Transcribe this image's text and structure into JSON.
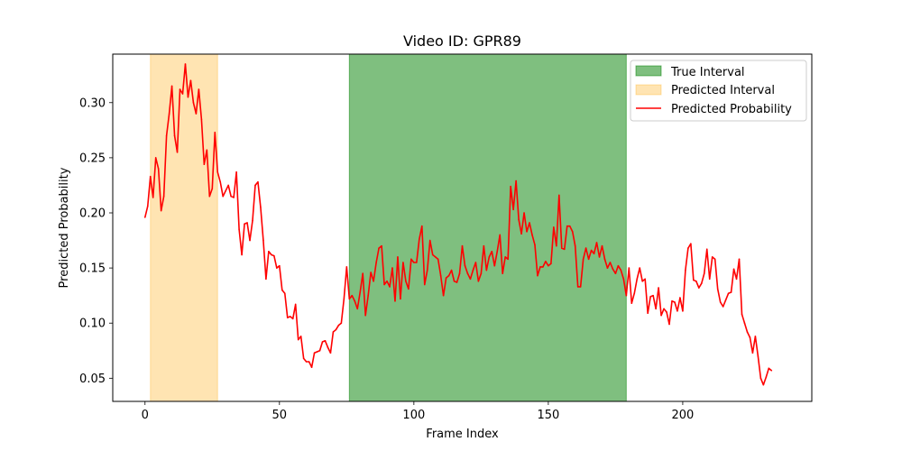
{
  "chart_data": {
    "type": "line",
    "title": "Video ID: GPR89",
    "xlabel": "Frame Index",
    "ylabel": "Predicted Probability",
    "xlim": [
      -12,
      248
    ],
    "ylim": [
      0.029,
      0.344
    ],
    "xticks": [
      0,
      50,
      100,
      150,
      200
    ],
    "yticks": [
      0.05,
      0.1,
      0.15,
      0.2,
      0.25,
      0.3
    ],
    "ytick_labels": [
      "0.05",
      "0.10",
      "0.15",
      "0.20",
      "0.25",
      "0.30"
    ],
    "grid": false,
    "legend_position": "top-right",
    "true_interval": {
      "name": "True Interval",
      "start": 76,
      "end": 179,
      "color": "#008000"
    },
    "predicted_interval": {
      "name": "Predicted Interval",
      "start": 2,
      "end": 27,
      "color": "#ffa500"
    },
    "series": [
      {
        "name": "Predicted Probability",
        "color": "#ff0000",
        "x_start": 0,
        "values": [
          0.196,
          0.206,
          0.233,
          0.214,
          0.25,
          0.24,
          0.202,
          0.215,
          0.27,
          0.29,
          0.315,
          0.27,
          0.255,
          0.312,
          0.308,
          0.335,
          0.305,
          0.32,
          0.3,
          0.29,
          0.312,
          0.285,
          0.244,
          0.257,
          0.215,
          0.222,
          0.273,
          0.237,
          0.228,
          0.215,
          0.22,
          0.225,
          0.215,
          0.214,
          0.237,
          0.185,
          0.162,
          0.19,
          0.191,
          0.175,
          0.193,
          0.225,
          0.228,
          0.205,
          0.175,
          0.14,
          0.165,
          0.162,
          0.161,
          0.15,
          0.152,
          0.13,
          0.127,
          0.105,
          0.106,
          0.104,
          0.117,
          0.085,
          0.088,
          0.068,
          0.065,
          0.065,
          0.06,
          0.073,
          0.074,
          0.075,
          0.083,
          0.084,
          0.078,
          0.073,
          0.092,
          0.094,
          0.098,
          0.1,
          0.122,
          0.151,
          0.122,
          0.125,
          0.12,
          0.113,
          0.128,
          0.145,
          0.107,
          0.125,
          0.146,
          0.138,
          0.155,
          0.168,
          0.17,
          0.135,
          0.138,
          0.133,
          0.15,
          0.12,
          0.16,
          0.122,
          0.155,
          0.138,
          0.131,
          0.158,
          0.155,
          0.155,
          0.176,
          0.188,
          0.135,
          0.148,
          0.175,
          0.162,
          0.16,
          0.158,
          0.143,
          0.125,
          0.141,
          0.143,
          0.148,
          0.138,
          0.137,
          0.145,
          0.17,
          0.152,
          0.145,
          0.14,
          0.148,
          0.155,
          0.138,
          0.145,
          0.17,
          0.148,
          0.16,
          0.165,
          0.152,
          0.165,
          0.18,
          0.145,
          0.16,
          0.158,
          0.224,
          0.203,
          0.229,
          0.194,
          0.181,
          0.2,
          0.183,
          0.191,
          0.18,
          0.171,
          0.143,
          0.151,
          0.151,
          0.156,
          0.152,
          0.154,
          0.187,
          0.17,
          0.216,
          0.168,
          0.167,
          0.188,
          0.188,
          0.183,
          0.17,
          0.133,
          0.133,
          0.158,
          0.168,
          0.158,
          0.166,
          0.163,
          0.173,
          0.16,
          0.17,
          0.158,
          0.15,
          0.155,
          0.149,
          0.145,
          0.152,
          0.148,
          0.14,
          0.125,
          0.15,
          0.118,
          0.127,
          0.14,
          0.15,
          0.138,
          0.14,
          0.109,
          0.124,
          0.125,
          0.113,
          0.132,
          0.107,
          0.113,
          0.11,
          0.099,
          0.12,
          0.119,
          0.111,
          0.123,
          0.111,
          0.148,
          0.168,
          0.172,
          0.139,
          0.138,
          0.132,
          0.136,
          0.145,
          0.167,
          0.14,
          0.16,
          0.158,
          0.131,
          0.119,
          0.115,
          0.121,
          0.127,
          0.128,
          0.149,
          0.14,
          0.158,
          0.108,
          0.1,
          0.092,
          0.087,
          0.073,
          0.088,
          0.07,
          0.05,
          0.044,
          0.051,
          0.059,
          0.057
        ]
      }
    ]
  }
}
